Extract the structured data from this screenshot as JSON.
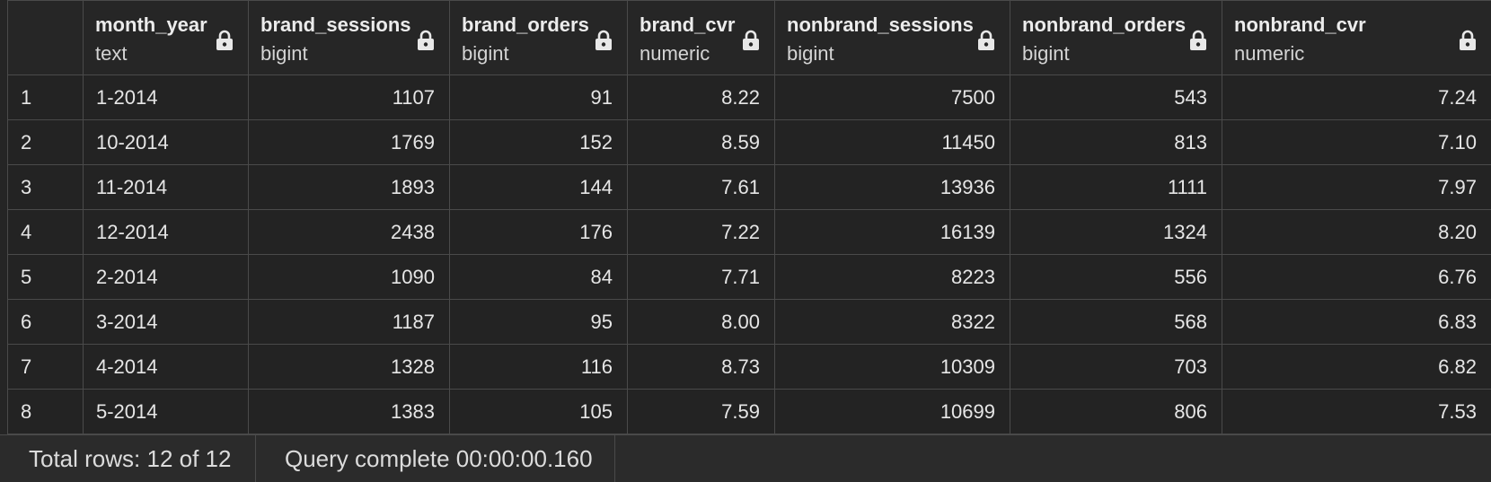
{
  "columns": [
    {
      "name": "month_year",
      "type": "text",
      "locked": true
    },
    {
      "name": "brand_sessions",
      "type": "bigint",
      "locked": true
    },
    {
      "name": "brand_orders",
      "type": "bigint",
      "locked": true
    },
    {
      "name": "brand_cvr",
      "type": "numeric",
      "locked": true
    },
    {
      "name": "nonbrand_sessions",
      "type": "bigint",
      "locked": true
    },
    {
      "name": "nonbrand_orders",
      "type": "bigint",
      "locked": true
    },
    {
      "name": "nonbrand_cvr",
      "type": "numeric",
      "locked": true
    }
  ],
  "rows": [
    {
      "num": "1",
      "cells": [
        "1-2014",
        "1107",
        "91",
        "8.22",
        "7500",
        "543",
        "7.24"
      ]
    },
    {
      "num": "2",
      "cells": [
        "10-2014",
        "1769",
        "152",
        "8.59",
        "11450",
        "813",
        "7.10"
      ]
    },
    {
      "num": "3",
      "cells": [
        "11-2014",
        "1893",
        "144",
        "7.61",
        "13936",
        "1111",
        "7.97"
      ]
    },
    {
      "num": "4",
      "cells": [
        "12-2014",
        "2438",
        "176",
        "7.22",
        "16139",
        "1324",
        "8.20"
      ]
    },
    {
      "num": "5",
      "cells": [
        "2-2014",
        "1090",
        "84",
        "7.71",
        "8223",
        "556",
        "6.76"
      ]
    },
    {
      "num": "6",
      "cells": [
        "3-2014",
        "1187",
        "95",
        "8.00",
        "8322",
        "568",
        "6.83"
      ]
    },
    {
      "num": "7",
      "cells": [
        "4-2014",
        "1328",
        "116",
        "8.73",
        "10309",
        "703",
        "6.82"
      ]
    },
    {
      "num": "8",
      "cells": [
        "5-2014",
        "1383",
        "105",
        "7.59",
        "10699",
        "806",
        "7.53"
      ]
    }
  ],
  "footer": {
    "total_rows": "Total rows: 12 of 12",
    "query_status": "Query complete 00:00:00.160"
  }
}
